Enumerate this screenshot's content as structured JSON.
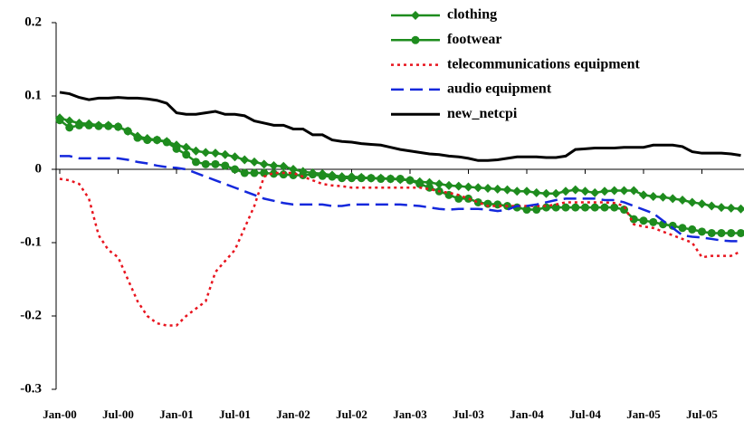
{
  "chart_data": {
    "type": "line",
    "categories": [
      "Jan-00",
      null,
      null,
      null,
      null,
      null,
      "Jul-00",
      null,
      null,
      null,
      null,
      null,
      "Jan-01",
      null,
      null,
      null,
      null,
      null,
      "Jul-01",
      null,
      null,
      null,
      null,
      null,
      "Jan-02",
      null,
      null,
      null,
      null,
      null,
      "Jul-02",
      null,
      null,
      null,
      null,
      null,
      "Jan-03",
      null,
      null,
      null,
      null,
      null,
      "Jul-03",
      null,
      null,
      null,
      null,
      null,
      "Jan-04",
      null,
      null,
      null,
      null,
      null,
      "Jul-04",
      null,
      null,
      null,
      null,
      null,
      "Jan-05",
      null,
      null,
      null,
      null,
      null,
      "Jul-05",
      null,
      null,
      null,
      null
    ],
    "ylim": [
      -0.3,
      0.2
    ],
    "yticks": [
      0.2,
      0.1,
      0,
      -0.1,
      -0.2,
      -0.3
    ],
    "legend": "upper right",
    "series": [
      {
        "name": "clothing",
        "color": "#1e8c1e",
        "marker": "diamond",
        "dash": "solid",
        "values": [
          0.07,
          0.066,
          0.063,
          0.062,
          0.06,
          0.06,
          0.058,
          0.052,
          0.045,
          0.042,
          0.04,
          0.038,
          0.033,
          0.03,
          0.025,
          0.023,
          0.022,
          0.02,
          0.017,
          0.013,
          0.01,
          0.007,
          0.005,
          0.004,
          0.0,
          -0.003,
          -0.005,
          -0.006,
          -0.008,
          -0.01,
          -0.01,
          -0.011,
          -0.012,
          -0.012,
          -0.013,
          -0.014,
          -0.015,
          -0.017,
          -0.018,
          -0.02,
          -0.022,
          -0.023,
          -0.024,
          -0.025,
          -0.026,
          -0.027,
          -0.028,
          -0.03,
          -0.03,
          -0.032,
          -0.033,
          -0.033,
          -0.03,
          -0.028,
          -0.03,
          -0.032,
          -0.03,
          -0.029,
          -0.029,
          -0.029,
          -0.035,
          -0.037,
          -0.038,
          -0.04,
          -0.042,
          -0.045,
          -0.047,
          -0.05,
          -0.052,
          -0.053,
          -0.054
        ]
      },
      {
        "name": "footwear",
        "color": "#1e8c1e",
        "marker": "circle",
        "dash": "solid",
        "values": [
          0.067,
          0.057,
          0.06,
          0.06,
          0.059,
          0.059,
          0.058,
          0.052,
          0.043,
          0.04,
          0.04,
          0.037,
          0.028,
          0.02,
          0.01,
          0.007,
          0.007,
          0.005,
          0.0,
          -0.005,
          -0.005,
          -0.005,
          -0.006,
          -0.007,
          -0.008,
          -0.008,
          -0.007,
          -0.009,
          -0.01,
          -0.012,
          -0.012,
          -0.012,
          -0.012,
          -0.013,
          -0.013,
          -0.013,
          -0.015,
          -0.02,
          -0.025,
          -0.03,
          -0.035,
          -0.04,
          -0.04,
          -0.045,
          -0.047,
          -0.048,
          -0.05,
          -0.052,
          -0.055,
          -0.055,
          -0.052,
          -0.052,
          -0.052,
          -0.052,
          -0.052,
          -0.052,
          -0.052,
          -0.052,
          -0.055,
          -0.068,
          -0.07,
          -0.072,
          -0.075,
          -0.077,
          -0.08,
          -0.082,
          -0.085,
          -0.087,
          -0.087,
          -0.087,
          -0.087
        ]
      },
      {
        "name": "telecommunications equipment",
        "color": "#e8141e",
        "marker": "none",
        "dash": "dotted",
        "values": [
          -0.013,
          -0.015,
          -0.02,
          -0.04,
          -0.09,
          -0.11,
          -0.12,
          -0.15,
          -0.18,
          -0.2,
          -0.21,
          -0.213,
          -0.213,
          -0.2,
          -0.19,
          -0.18,
          -0.14,
          -0.125,
          -0.11,
          -0.08,
          -0.05,
          -0.01,
          -0.005,
          -0.005,
          -0.005,
          -0.01,
          -0.015,
          -0.02,
          -0.022,
          -0.023,
          -0.025,
          -0.025,
          -0.025,
          -0.025,
          -0.025,
          -0.025,
          -0.025,
          -0.025,
          -0.027,
          -0.03,
          -0.032,
          -0.035,
          -0.04,
          -0.045,
          -0.05,
          -0.05,
          -0.05,
          -0.05,
          -0.05,
          -0.05,
          -0.05,
          -0.048,
          -0.045,
          -0.045,
          -0.045,
          -0.045,
          -0.045,
          -0.046,
          -0.05,
          -0.075,
          -0.078,
          -0.08,
          -0.085,
          -0.09,
          -0.095,
          -0.1,
          -0.12,
          -0.118,
          -0.118,
          -0.118,
          -0.112
        ]
      },
      {
        "name": "audio equipment",
        "color": "#1428dc",
        "marker": "none",
        "dash": "dashed",
        "values": [
          0.018,
          0.018,
          0.015,
          0.015,
          0.015,
          0.015,
          0.015,
          0.013,
          0.01,
          0.008,
          0.005,
          0.003,
          0.002,
          0,
          -0.005,
          -0.01,
          -0.015,
          -0.02,
          -0.025,
          -0.03,
          -0.035,
          -0.04,
          -0.043,
          -0.046,
          -0.048,
          -0.048,
          -0.048,
          -0.048,
          -0.05,
          -0.05,
          -0.048,
          -0.048,
          -0.048,
          -0.048,
          -0.048,
          -0.048,
          -0.049,
          -0.05,
          -0.052,
          -0.054,
          -0.055,
          -0.054,
          -0.054,
          -0.054,
          -0.055,
          -0.057,
          -0.055,
          -0.05,
          -0.05,
          -0.048,
          -0.045,
          -0.042,
          -0.04,
          -0.04,
          -0.04,
          -0.04,
          -0.042,
          -0.042,
          -0.045,
          -0.05,
          -0.055,
          -0.06,
          -0.07,
          -0.08,
          -0.09,
          -0.092,
          -0.093,
          -0.095,
          -0.097,
          -0.098,
          -0.098
        ]
      },
      {
        "name": "new_netcpi",
        "color": "#000000",
        "marker": "none",
        "dash": "solid",
        "values": [
          0.105,
          0.103,
          0.098,
          0.095,
          0.097,
          0.097,
          0.098,
          0.097,
          0.097,
          0.096,
          0.094,
          0.09,
          0.077,
          0.075,
          0.075,
          0.077,
          0.079,
          0.075,
          0.075,
          0.073,
          0.066,
          0.063,
          0.06,
          0.06,
          0.055,
          0.055,
          0.047,
          0.047,
          0.04,
          0.038,
          0.037,
          0.035,
          0.034,
          0.033,
          0.03,
          0.027,
          0.025,
          0.023,
          0.021,
          0.02,
          0.018,
          0.017,
          0.015,
          0.012,
          0.012,
          0.013,
          0.015,
          0.017,
          0.017,
          0.017,
          0.016,
          0.016,
          0.018,
          0.027,
          0.028,
          0.029,
          0.029,
          0.029,
          0.03,
          0.03,
          0.03,
          0.033,
          0.033,
          0.033,
          0.031,
          0.024,
          0.022,
          0.022,
          0.022,
          0.021,
          0.019
        ]
      }
    ]
  }
}
